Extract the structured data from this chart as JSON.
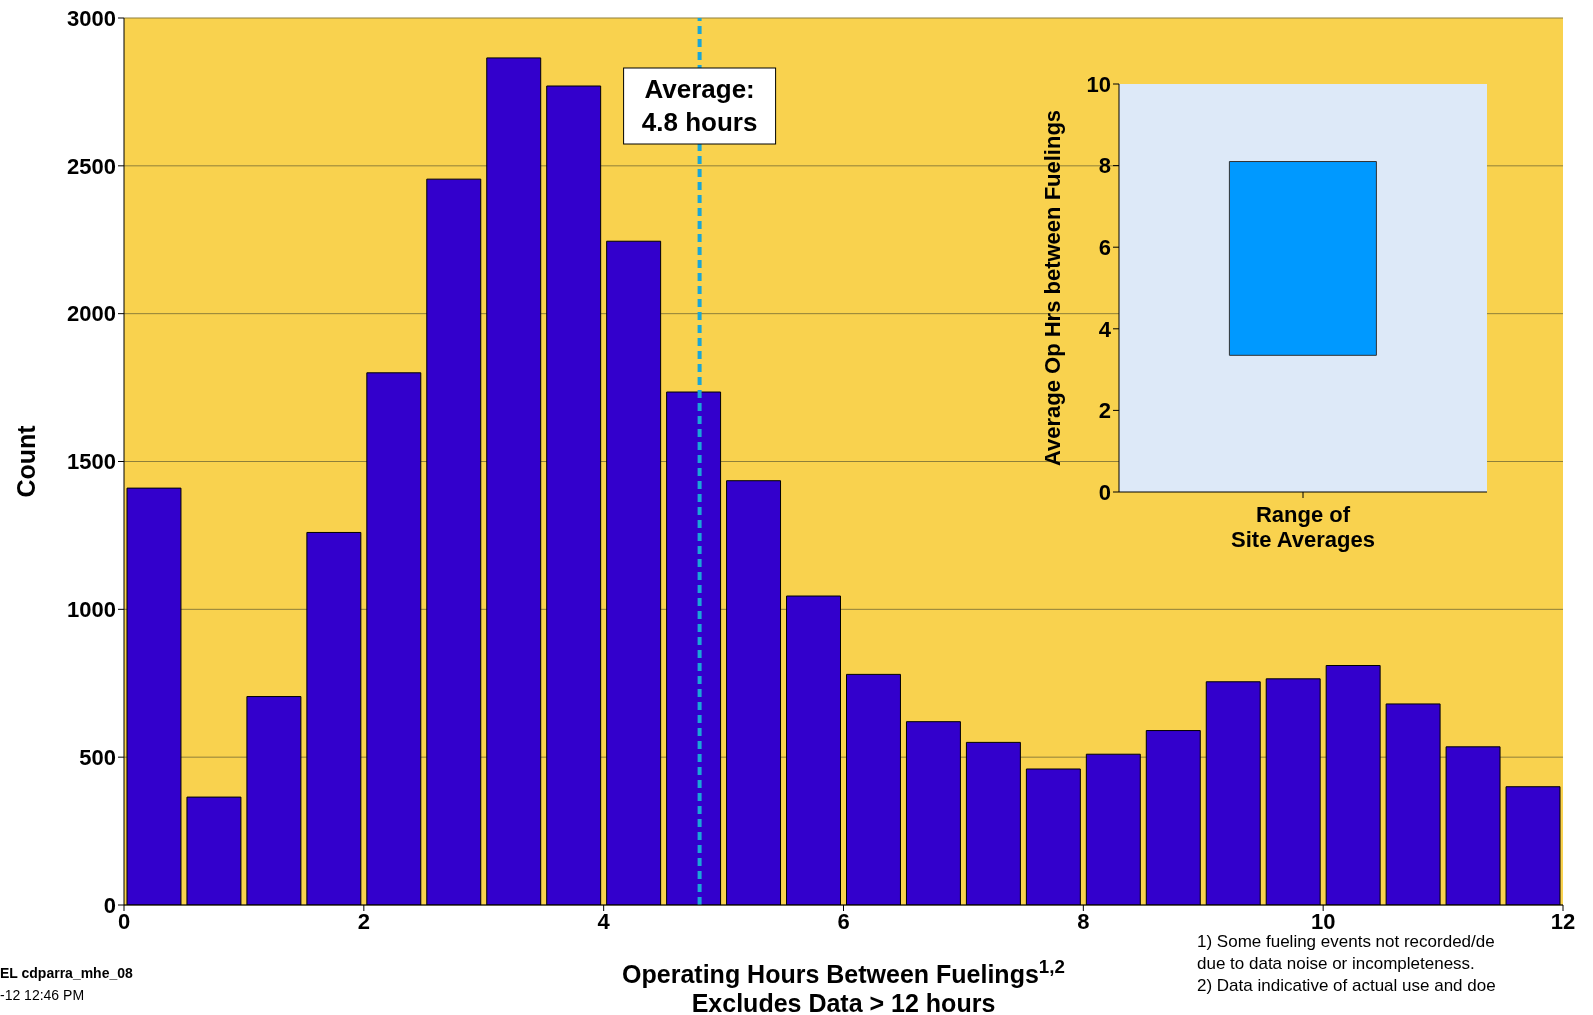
{
  "chart_data": [
    {
      "type": "histogram",
      "xlabel": "Operating Hours Between Fuelings$^{1,2}$\nExcludes Data > 12 hours",
      "ylabel": "Count",
      "bins": [
        0,
        0.5,
        1,
        1.5,
        2,
        2.5,
        3,
        3.5,
        4,
        4.5,
        5,
        5.5,
        6,
        6.5,
        7,
        7.5,
        8,
        8.5,
        9,
        9.5,
        10,
        10.5,
        11,
        11.5,
        12
      ],
      "values": [
        1410,
        365,
        705,
        1260,
        1800,
        2455,
        2865,
        2770,
        2245,
        1735,
        1435,
        1045,
        780,
        620,
        550,
        460,
        510,
        590,
        755,
        765,
        810,
        680,
        535,
        400
      ],
      "color": "#3300cc",
      "xlim": [
        0,
        12
      ],
      "xticks": [
        0,
        2,
        4,
        6,
        8,
        10,
        12
      ],
      "ylim": [
        0,
        3000
      ],
      "yticks": [
        0,
        500,
        1000,
        1500,
        2000,
        2500,
        3000
      ],
      "grid": "y",
      "ref_lines": [
        {
          "axis": "x",
          "value": 4.8,
          "label": "Average:\n4.8 hours",
          "color": "#1aa6d8",
          "line_style": "dashed"
        }
      ],
      "annotations": [
        "EL cdparra_mhe_08",
        "-12 12:46 PM",
        "1) Some fueling events not recorded/de",
        "due to data noise or incompleteness.",
        "2) Data indicative of actual use and doe"
      ]
    },
    {
      "type": "bar",
      "xlabel": "Range of\nSite Averages",
      "ylabel": "Average Op Hrs between Fuelings",
      "categories": [
        null
      ],
      "base": [
        3.35
      ],
      "values": [
        4.75
      ],
      "color": "#0099ff",
      "ylim": [
        0,
        10
      ],
      "yticks": [
        0,
        2,
        4,
        6,
        8,
        10
      ]
    }
  ]
}
